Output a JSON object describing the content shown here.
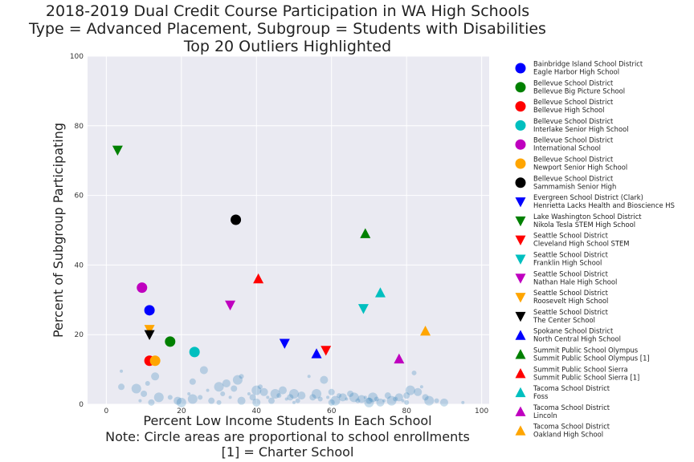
{
  "chart_data": {
    "type": "scatter",
    "title_lines": [
      "2018-2019 Dual Credit Course Participation in WA High Schools",
      "Type = Advanced Placement, Subgroup = Students with Disabilities",
      "Top 20 Outliers Highlighted"
    ],
    "xlabel_lines": [
      "Percent Low Income Students In Each School",
      "Note: Circle areas are proportional to school enrollments",
      "[1] = Charter School"
    ],
    "ylabel": "Percent of Subgroup Participating",
    "xlim": [
      -5,
      102
    ],
    "ylim": [
      0,
      100
    ],
    "x_ticks": [
      "0",
      "20",
      "40",
      "60",
      "80",
      "100"
    ],
    "y_ticks": [
      "0",
      "20",
      "40",
      "60",
      "80",
      "100"
    ],
    "grid": true,
    "legend_position": "outside-right",
    "background_points": [
      [
        4,
        9.5
      ],
      [
        4,
        5
      ],
      [
        8,
        4.5
      ],
      [
        11,
        6
      ],
      [
        13,
        8
      ],
      [
        9,
        1
      ],
      [
        10,
        3
      ],
      [
        14,
        2
      ],
      [
        17,
        2
      ],
      [
        19,
        1
      ],
      [
        22,
        3
      ],
      [
        23,
        6.5
      ],
      [
        23,
        1.5
      ],
      [
        25,
        2
      ],
      [
        26,
        9.8
      ],
      [
        27,
        4
      ],
      [
        28,
        1
      ],
      [
        30,
        5
      ],
      [
        31,
        3
      ],
      [
        32,
        6
      ],
      [
        33,
        2
      ],
      [
        34,
        4.5
      ],
      [
        35,
        7
      ],
      [
        36,
        8
      ],
      [
        36,
        1
      ],
      [
        38,
        3
      ],
      [
        39,
        2
      ],
      [
        40,
        4
      ],
      [
        41,
        5
      ],
      [
        42,
        3.5
      ],
      [
        43,
        2
      ],
      [
        44,
        1
      ],
      [
        45,
        3
      ],
      [
        46,
        2.5
      ],
      [
        47,
        4
      ],
      [
        48,
        1.5
      ],
      [
        49,
        2
      ],
      [
        50,
        3
      ],
      [
        51,
        1
      ],
      [
        52,
        2.5
      ],
      [
        54,
        8
      ],
      [
        55,
        2
      ],
      [
        56,
        3
      ],
      [
        57,
        1.5
      ],
      [
        58,
        7
      ],
      [
        59,
        2
      ],
      [
        60,
        3.5
      ],
      [
        61,
        1
      ],
      [
        62,
        2.5
      ],
      [
        63,
        2
      ],
      [
        64,
        1.5
      ],
      [
        65,
        3
      ],
      [
        66,
        2
      ],
      [
        67,
        1
      ],
      [
        68,
        1.5
      ],
      [
        69,
        2
      ],
      [
        70,
        1
      ],
      [
        71,
        2
      ],
      [
        72,
        1.5
      ],
      [
        73,
        0.5
      ],
      [
        74,
        1
      ],
      [
        75,
        2.5
      ],
      [
        76,
        1
      ],
      [
        77,
        1.5
      ],
      [
        78,
        2
      ],
      [
        79,
        1
      ],
      [
        80,
        2.5
      ],
      [
        81,
        4
      ],
      [
        82,
        9
      ],
      [
        83,
        3.5
      ],
      [
        84,
        5
      ],
      [
        85,
        2
      ],
      [
        86,
        1
      ],
      [
        88,
        1
      ],
      [
        90,
        0.5
      ],
      [
        95,
        0.5
      ],
      [
        12,
        0.5
      ],
      [
        20,
        0.5
      ],
      [
        30,
        0.5
      ],
      [
        40,
        0.5
      ],
      [
        50,
        0.5
      ],
      [
        60,
        0.5
      ],
      [
        70,
        0.5
      ],
      [
        80,
        0.5
      ]
    ],
    "outliers": [
      {
        "district": "Bainbridge Island School District",
        "school": "Eagle Harbor High School",
        "marker": "circle",
        "color": "#0000ff",
        "x": 11.5,
        "y": 27
      },
      {
        "district": "Bellevue School District",
        "school": "Bellevue Big Picture School",
        "marker": "circle",
        "color": "#008000",
        "x": 17,
        "y": 18
      },
      {
        "district": "Bellevue School District",
        "school": "Bellevue High School",
        "marker": "circle",
        "color": "#ff0000",
        "x": 11.5,
        "y": 12.5
      },
      {
        "district": "Bellevue School District",
        "school": "Interlake Senior High School",
        "marker": "circle",
        "color": "#00bfbf",
        "x": 23.5,
        "y": 15
      },
      {
        "district": "Bellevue School District",
        "school": "International School",
        "marker": "circle",
        "color": "#bf00bf",
        "x": 9.5,
        "y": 33.5
      },
      {
        "district": "Bellevue School District",
        "school": "Newport Senior High School",
        "marker": "circle",
        "color": "#ffa500",
        "x": 13,
        "y": 12.5
      },
      {
        "district": "Bellevue School District",
        "school": "Sammamish Senior High",
        "marker": "circle",
        "color": "#000000",
        "x": 34.5,
        "y": 53
      },
      {
        "district": "Evergreen School District (Clark)",
        "school": "Henrietta Lacks Health and Bioscience HS",
        "marker": "triangle-down",
        "color": "#0000ff",
        "x": 47.5,
        "y": 17.5
      },
      {
        "district": "Lake Washington School District",
        "school": "Nikola Tesla STEM High School",
        "marker": "triangle-down",
        "color": "#008000",
        "x": 3,
        "y": 73
      },
      {
        "district": "Seattle School District",
        "school": "Cleveland High School STEM",
        "marker": "triangle-down",
        "color": "#ff0000",
        "x": 58.5,
        "y": 15.5
      },
      {
        "district": "Seattle School District",
        "school": "Franklin High School",
        "marker": "triangle-down",
        "color": "#00bfbf",
        "x": 68.5,
        "y": 27.5
      },
      {
        "district": "Seattle School District",
        "school": "Nathan Hale High School",
        "marker": "triangle-down",
        "color": "#bf00bf",
        "x": 33,
        "y": 28.5
      },
      {
        "district": "Seattle School District",
        "school": "Roosevelt High School",
        "marker": "triangle-down",
        "color": "#ffa500",
        "x": 11.5,
        "y": 21.5
      },
      {
        "district": "Seattle School District",
        "school": "The Center School",
        "marker": "triangle-down",
        "color": "#000000",
        "x": 11.5,
        "y": 20
      },
      {
        "district": "Spokane School District",
        "school": "North Central High School",
        "marker": "triangle-up",
        "color": "#0000ff",
        "x": 56,
        "y": 14.5
      },
      {
        "district": "Summit Public School Olympus",
        "school": "Summit Public School Olympus [1]",
        "marker": "triangle-up",
        "color": "#008000",
        "x": 69,
        "y": 49
      },
      {
        "district": "Summit Public School Sierra",
        "school": "Summit Public School Sierra [1]",
        "marker": "triangle-up",
        "color": "#ff0000",
        "x": 40.5,
        "y": 36
      },
      {
        "district": "Tacoma School District",
        "school": "Foss",
        "marker": "triangle-up",
        "color": "#00bfbf",
        "x": 73,
        "y": 32
      },
      {
        "district": "Tacoma School District",
        "school": "Lincoln",
        "marker": "triangle-up",
        "color": "#bf00bf",
        "x": 78,
        "y": 13
      },
      {
        "district": "Tacoma School District",
        "school": "Oakland High School",
        "marker": "triangle-up",
        "color": "#ffa500",
        "x": 85,
        "y": 21
      }
    ]
  }
}
